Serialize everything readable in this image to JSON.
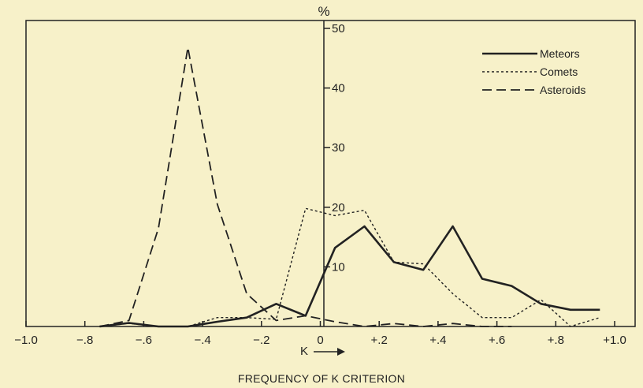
{
  "chart_data": {
    "type": "line",
    "title": "",
    "caption": "FREQUENCY OF K CRITERION",
    "xlabel": "K",
    "ylabel": "%",
    "xlim": [
      -1.0,
      1.0
    ],
    "ylim": [
      0,
      50
    ],
    "x_ticks": [
      {
        "value": -1.0,
        "label": "−1.0"
      },
      {
        "value": -0.8,
        "label": "−.8"
      },
      {
        "value": -0.6,
        "label": "−.6"
      },
      {
        "value": -0.4,
        "label": "−.4"
      },
      {
        "value": -0.2,
        "label": "−.2"
      },
      {
        "value": 0.0,
        "label": "0"
      },
      {
        "value": 0.2,
        "label": "+.2"
      },
      {
        "value": 0.4,
        "label": "+.4"
      },
      {
        "value": 0.6,
        "label": "+.6"
      },
      {
        "value": 0.8,
        "label": "+.8"
      },
      {
        "value": 1.0,
        "label": "+1.0"
      }
    ],
    "y_ticks": [
      {
        "value": 10,
        "label": "10"
      },
      {
        "value": 20,
        "label": "20"
      },
      {
        "value": 30,
        "label": "30"
      },
      {
        "value": 40,
        "label": "40"
      },
      {
        "value": 50,
        "label": "50"
      }
    ],
    "legend_position": "top-right",
    "series": [
      {
        "name": "Meteors",
        "style": "solid",
        "x": [
          -0.75,
          -0.65,
          -0.55,
          -0.45,
          -0.35,
          -0.25,
          -0.15,
          -0.05,
          0.0,
          0.05,
          0.15,
          0.25,
          0.35,
          0.45,
          0.55,
          0.65,
          0.75,
          0.85,
          0.95
        ],
        "y": [
          0,
          0.6,
          0,
          0,
          0.8,
          1.5,
          3.8,
          1.8,
          7.5,
          13.2,
          16.8,
          10.8,
          9.5,
          16.8,
          8.0,
          6.8,
          3.8,
          2.8,
          2.8
        ]
      },
      {
        "name": "Comets",
        "style": "dotted",
        "x": [
          -0.75,
          -0.65,
          -0.55,
          -0.45,
          -0.35,
          -0.25,
          -0.15,
          -0.05,
          0.05,
          0.15,
          0.25,
          0.35,
          0.45,
          0.55,
          0.65,
          0.75,
          0.85,
          0.95
        ],
        "y": [
          0,
          0.5,
          0,
          0,
          1.5,
          1.5,
          1.2,
          19.8,
          18.6,
          19.5,
          10.8,
          10.5,
          5.5,
          1.5,
          1.5,
          4.5,
          0,
          1.5
        ]
      },
      {
        "name": "Asteroids",
        "style": "dashed",
        "x": [
          -0.75,
          -0.65,
          -0.55,
          -0.45,
          -0.35,
          -0.25,
          -0.15,
          -0.05,
          0.05,
          0.15,
          0.25,
          0.35,
          0.45,
          0.55,
          0.65
        ],
        "y": [
          0,
          1.0,
          16.5,
          46.8,
          20.5,
          5.5,
          1.0,
          1.8,
          0.8,
          0,
          0.5,
          0,
          0.5,
          0,
          0
        ]
      }
    ]
  }
}
